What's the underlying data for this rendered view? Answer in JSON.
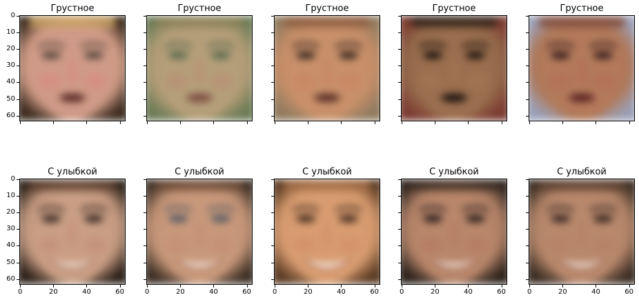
{
  "figure": {
    "rows": [
      {
        "panel_title": "Грустное",
        "faces": [
          {
            "skin": "#cf9a87",
            "hair": "#c9a262",
            "bg": "#3a2a1c",
            "eye": "#5a4a40",
            "mouth": "#5b2a26",
            "cheek": "#d88a80"
          },
          {
            "skin": "#b49e78",
            "hair": "#8a8058",
            "bg": "#6b7a55",
            "eye": "#5c6a50",
            "mouth": "#7a4a42",
            "cheek": "#b98e76"
          },
          {
            "skin": "#c8906a",
            "hair": "#8a5a3c",
            "bg": "#8f7a5e",
            "eye": "#3c2a22",
            "mouth": "#5a2e26",
            "cheek": "#c98462"
          },
          {
            "skin": "#9a6e4e",
            "hair": "#2c1e16",
            "bg": "#7a3a30",
            "eye": "#1e140e",
            "mouth": "#1c1210",
            "cheek": "#a67656"
          },
          {
            "skin": "#b27a5a",
            "hair": "#7e4a3a",
            "bg": "#9aa0b8",
            "eye": "#3a1e1e",
            "mouth": "#5a2222",
            "cheek": "#b46c5a"
          }
        ]
      },
      {
        "panel_title": "С улыбкой",
        "faces": [
          {
            "skin": "#c99e84",
            "hair": "#5a3c2a",
            "bg": "#2c2018",
            "eye": "#3e2e28",
            "mouth": "#f0ddd0",
            "cheek": "#c58e78"
          },
          {
            "skin": "#c8987a",
            "hair": "#6a4a36",
            "bg": "#3c2e24",
            "eye": "#5a5c66",
            "mouth": "#f2e2d6",
            "cheek": "#c48c72"
          },
          {
            "skin": "#d89c70",
            "hair": "#a06a44",
            "bg": "#5a3a22",
            "eye": "#4a3224",
            "mouth": "#f8ece0",
            "cheek": "#d48e66"
          },
          {
            "skin": "#b8866a",
            "hair": "#3a2a22",
            "bg": "#2a201a",
            "eye": "#2e2220",
            "mouth": "#efdcd0",
            "cheek": "#b47c62"
          },
          {
            "skin": "#b8886c",
            "hair": "#5a3e2e",
            "bg": "#3a2c22",
            "eye": "#3a2a24",
            "mouth": "#f0e0d4",
            "cheek": "#b68066"
          }
        ]
      }
    ],
    "y_ticks": [
      "0",
      "10",
      "20",
      "30",
      "40",
      "50",
      "60"
    ],
    "x_ticks": [
      "0",
      "20",
      "40",
      "60"
    ]
  }
}
